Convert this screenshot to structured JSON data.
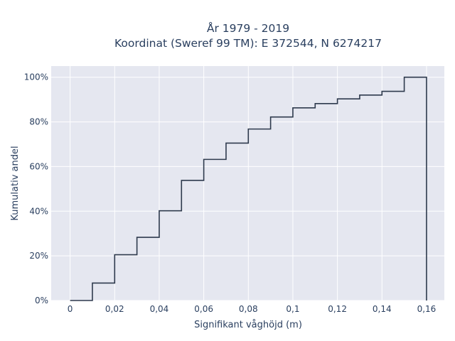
{
  "chart_data": {
    "type": "line",
    "line_shape": "step",
    "title_lines": [
      "År 1979 - 2019",
      "Koordinat (Sweref 99 TM): E 372544, N 6274217"
    ],
    "xlabel": "Signifikant våghöjd (m)",
    "ylabel": "Kumulativ andel",
    "xlim": [
      -0.0085,
      0.168
    ],
    "ylim": [
      0,
      1.05
    ],
    "x_ticks": [
      0,
      0.02,
      0.04,
      0.06,
      0.08,
      0.1,
      0.12,
      0.14,
      0.16
    ],
    "x_tick_labels": [
      "0",
      "0,02",
      "0,04",
      "0,06",
      "0,08",
      "0,1",
      "0,12",
      "0,14",
      "0,16"
    ],
    "y_ticks": [
      0,
      0.2,
      0.4,
      0.6,
      0.8,
      1.0
    ],
    "y_tick_labels": [
      "0%",
      "20%",
      "40%",
      "60%",
      "80%",
      "100%"
    ],
    "grid": true,
    "legend": "none",
    "series": [
      {
        "x": [
          0,
          0.01,
          0.02,
          0.03,
          0.04,
          0.05,
          0.06,
          0.07,
          0.08,
          0.09,
          0.1,
          0.11,
          0.12,
          0.13,
          0.14,
          0.15,
          0.16,
          0.16
        ],
        "y": [
          0.0,
          0.078,
          0.205,
          0.283,
          0.402,
          0.538,
          0.632,
          0.705,
          0.768,
          0.822,
          0.863,
          0.882,
          0.903,
          0.92,
          0.937,
          1.0,
          1.0,
          0.0
        ]
      }
    ],
    "colors": {
      "background": "#e5e7f0",
      "line": "#2e3a4d"
    }
  }
}
